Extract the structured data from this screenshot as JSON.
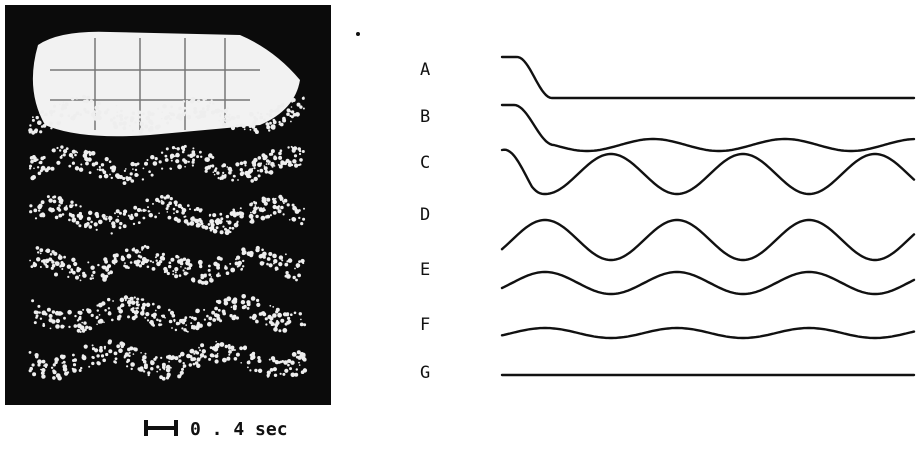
{
  "figure": {
    "labels": [
      "A",
      "B",
      "C",
      "D",
      "E",
      "F",
      "G"
    ],
    "scale_label": "0 . 4 sec"
  }
}
